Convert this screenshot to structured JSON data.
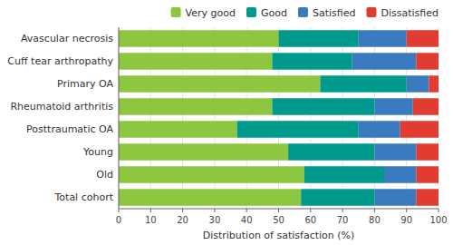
{
  "chart_data": {
    "type": "bar",
    "orientation": "horizontal",
    "stacked": true,
    "categories": [
      "Total cohort",
      "Old",
      "Young",
      "Posttraumatic OA",
      "Rheumatoid arthritis",
      "Primary OA",
      "Cuff tear arthropathy",
      "Avascular necrosis"
    ],
    "series": [
      {
        "name": "Very good",
        "color": "#8dc63f",
        "values": [
          57,
          58,
          53,
          37,
          48,
          63,
          48,
          50
        ]
      },
      {
        "name": "Good",
        "color": "#009a8c",
        "values": [
          23,
          25,
          27,
          38,
          32,
          27,
          25,
          25
        ]
      },
      {
        "name": "Satisfied",
        "color": "#3a7abf",
        "values": [
          13,
          10,
          13,
          13,
          12,
          7,
          20,
          15
        ]
      },
      {
        "name": "Dissatisfied",
        "color": "#e03c31",
        "values": [
          7,
          7,
          7,
          12,
          8,
          3,
          7,
          10
        ]
      }
    ],
    "xlabel": "Distribution of satisfaction (%)",
    "xlim": [
      0,
      100
    ],
    "xticks": [
      0,
      10,
      20,
      30,
      40,
      50,
      60,
      70,
      80,
      90,
      100
    ],
    "grid": true,
    "legend": "upper right"
  }
}
